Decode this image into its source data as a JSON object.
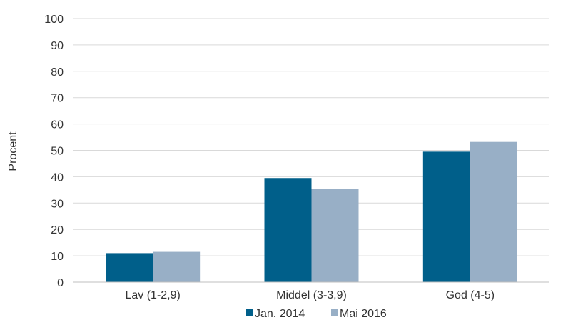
{
  "chart_data": {
    "type": "bar",
    "title": "",
    "xlabel": "",
    "ylabel": "Procent",
    "ylim": [
      0,
      100
    ],
    "yticks": [
      0,
      10,
      20,
      30,
      40,
      50,
      60,
      70,
      80,
      90,
      100
    ],
    "categories": [
      "Lav (1-2,9)",
      "Middel (3-3,9)",
      "God (4-5)"
    ],
    "series": [
      {
        "name": "Jan. 2014",
        "color": "#005f8a",
        "values": [
          11,
          39.5,
          49.5
        ]
      },
      {
        "name": "Mai 2016",
        "color": "#98afc6",
        "values": [
          11.5,
          35.3,
          53.2
        ]
      }
    ],
    "grid": true,
    "legend": "bottom"
  }
}
